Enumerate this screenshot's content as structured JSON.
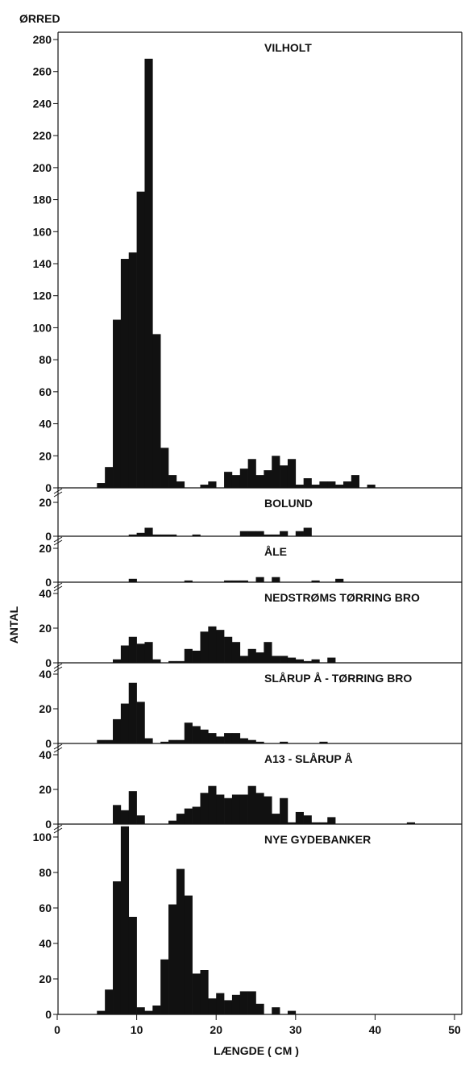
{
  "figure": {
    "species_label": "ØRRED",
    "y_axis_label": "ANTAL",
    "x_axis_label": "LÆNGDE ( CM )"
  },
  "chart_data": {
    "type": "bar",
    "bin_width_cm": 1,
    "xlim": [
      0,
      50
    ],
    "x_ticks": [
      0,
      10,
      20,
      30,
      40,
      50
    ],
    "xlabel": "LÆNGDE ( CM )",
    "ylabel": "ANTAL",
    "grid": false,
    "panels": [
      {
        "title": "VILHOLT",
        "ylim": [
          0,
          280
        ],
        "y_ticks": [
          0,
          20,
          40,
          60,
          80,
          100,
          120,
          140,
          160,
          180,
          200,
          220,
          240,
          260,
          280
        ],
        "axis_break": false,
        "bars": [
          [
            5,
            3
          ],
          [
            6,
            13
          ],
          [
            7,
            105
          ],
          [
            8,
            143
          ],
          [
            9,
            147
          ],
          [
            10,
            185
          ],
          [
            11,
            268
          ],
          [
            12,
            96
          ],
          [
            13,
            25
          ],
          [
            14,
            8
          ],
          [
            15,
            4
          ],
          [
            18,
            2
          ],
          [
            19,
            4
          ],
          [
            21,
            10
          ],
          [
            22,
            8
          ],
          [
            23,
            12
          ],
          [
            24,
            18
          ],
          [
            25,
            8
          ],
          [
            26,
            11
          ],
          [
            27,
            20
          ],
          [
            28,
            14
          ],
          [
            29,
            18
          ],
          [
            30,
            2
          ],
          [
            31,
            6
          ],
          [
            32,
            2
          ],
          [
            33,
            4
          ],
          [
            34,
            4
          ],
          [
            35,
            2
          ],
          [
            36,
            4
          ],
          [
            37,
            8
          ],
          [
            39,
            2
          ]
        ]
      },
      {
        "title": "BOLUND",
        "ylim": [
          0,
          25
        ],
        "y_ticks": [
          0,
          20
        ],
        "axis_break": true,
        "bars": [
          [
            9,
            1
          ],
          [
            10,
            2
          ],
          [
            11,
            5
          ],
          [
            12,
            1
          ],
          [
            13,
            1
          ],
          [
            14,
            1
          ],
          [
            17,
            1
          ],
          [
            23,
            3
          ],
          [
            24,
            3
          ],
          [
            25,
            3
          ],
          [
            26,
            1
          ],
          [
            27,
            1
          ],
          [
            28,
            3
          ],
          [
            30,
            3
          ],
          [
            31,
            5
          ]
        ]
      },
      {
        "title": "ÅLE",
        "ylim": [
          0,
          25
        ],
        "y_ticks": [
          0,
          20
        ],
        "axis_break": true,
        "bars": [
          [
            9,
            2
          ],
          [
            16,
            1
          ],
          [
            21,
            1
          ],
          [
            22,
            1
          ],
          [
            23,
            1
          ],
          [
            25,
            3
          ],
          [
            27,
            3
          ],
          [
            32,
            1
          ],
          [
            35,
            2
          ]
        ]
      },
      {
        "title": "NEDSTRØMS TØRRING BRO",
        "ylim": [
          0,
          45
        ],
        "y_ticks": [
          0,
          20,
          40
        ],
        "axis_break": true,
        "bars": [
          [
            7,
            2
          ],
          [
            8,
            10
          ],
          [
            9,
            15
          ],
          [
            10,
            11
          ],
          [
            11,
            12
          ],
          [
            12,
            2
          ],
          [
            14,
            1
          ],
          [
            15,
            1
          ],
          [
            16,
            8
          ],
          [
            17,
            7
          ],
          [
            18,
            18
          ],
          [
            19,
            21
          ],
          [
            20,
            19
          ],
          [
            21,
            15
          ],
          [
            22,
            12
          ],
          [
            23,
            4
          ],
          [
            24,
            8
          ],
          [
            25,
            6
          ],
          [
            26,
            12
          ],
          [
            27,
            4
          ],
          [
            28,
            4
          ],
          [
            29,
            3
          ],
          [
            30,
            2
          ],
          [
            31,
            1
          ],
          [
            32,
            2
          ],
          [
            34,
            3
          ]
        ]
      },
      {
        "title": "SLÅRUP Å - TØRRING BRO",
        "ylim": [
          0,
          45
        ],
        "y_ticks": [
          0,
          20,
          40
        ],
        "axis_break": true,
        "bars": [
          [
            5,
            2
          ],
          [
            6,
            2
          ],
          [
            7,
            14
          ],
          [
            8,
            23
          ],
          [
            9,
            35
          ],
          [
            10,
            24
          ],
          [
            11,
            3
          ],
          [
            13,
            1
          ],
          [
            14,
            2
          ],
          [
            15,
            2
          ],
          [
            16,
            12
          ],
          [
            17,
            10
          ],
          [
            18,
            8
          ],
          [
            19,
            6
          ],
          [
            20,
            4
          ],
          [
            21,
            6
          ],
          [
            22,
            6
          ],
          [
            23,
            3
          ],
          [
            24,
            2
          ],
          [
            25,
            1
          ],
          [
            28,
            1
          ],
          [
            33,
            1
          ]
        ]
      },
      {
        "title": "A13 - SLÅRUP Å",
        "ylim": [
          0,
          45
        ],
        "y_ticks": [
          0,
          20,
          40
        ],
        "axis_break": true,
        "bars": [
          [
            7,
            11
          ],
          [
            8,
            8
          ],
          [
            9,
            19
          ],
          [
            10,
            5
          ],
          [
            14,
            2
          ],
          [
            15,
            6
          ],
          [
            16,
            9
          ],
          [
            17,
            10
          ],
          [
            18,
            18
          ],
          [
            19,
            22
          ],
          [
            20,
            17
          ],
          [
            21,
            15
          ],
          [
            22,
            17
          ],
          [
            23,
            17
          ],
          [
            24,
            22
          ],
          [
            25,
            18
          ],
          [
            26,
            16
          ],
          [
            27,
            6
          ],
          [
            28,
            15
          ],
          [
            29,
            1
          ],
          [
            30,
            7
          ],
          [
            31,
            5
          ],
          [
            32,
            1
          ],
          [
            33,
            1
          ],
          [
            34,
            4
          ],
          [
            44,
            1
          ]
        ]
      },
      {
        "title": "NYE GYDEBANKER",
        "ylim": [
          0,
          115
        ],
        "y_ticks": [
          0,
          20,
          40,
          60,
          80,
          100
        ],
        "axis_break": true,
        "bars": [
          [
            5,
            2
          ],
          [
            6,
            14
          ],
          [
            7,
            75
          ],
          [
            8,
            106
          ],
          [
            9,
            55
          ],
          [
            10,
            4
          ],
          [
            11,
            2
          ],
          [
            12,
            5
          ],
          [
            13,
            31
          ],
          [
            14,
            62
          ],
          [
            15,
            82
          ],
          [
            16,
            67
          ],
          [
            17,
            23
          ],
          [
            18,
            25
          ],
          [
            19,
            9
          ],
          [
            20,
            12
          ],
          [
            21,
            8
          ],
          [
            22,
            11
          ],
          [
            23,
            13
          ],
          [
            24,
            13
          ],
          [
            25,
            6
          ],
          [
            27,
            4
          ],
          [
            29,
            2
          ]
        ]
      }
    ]
  }
}
